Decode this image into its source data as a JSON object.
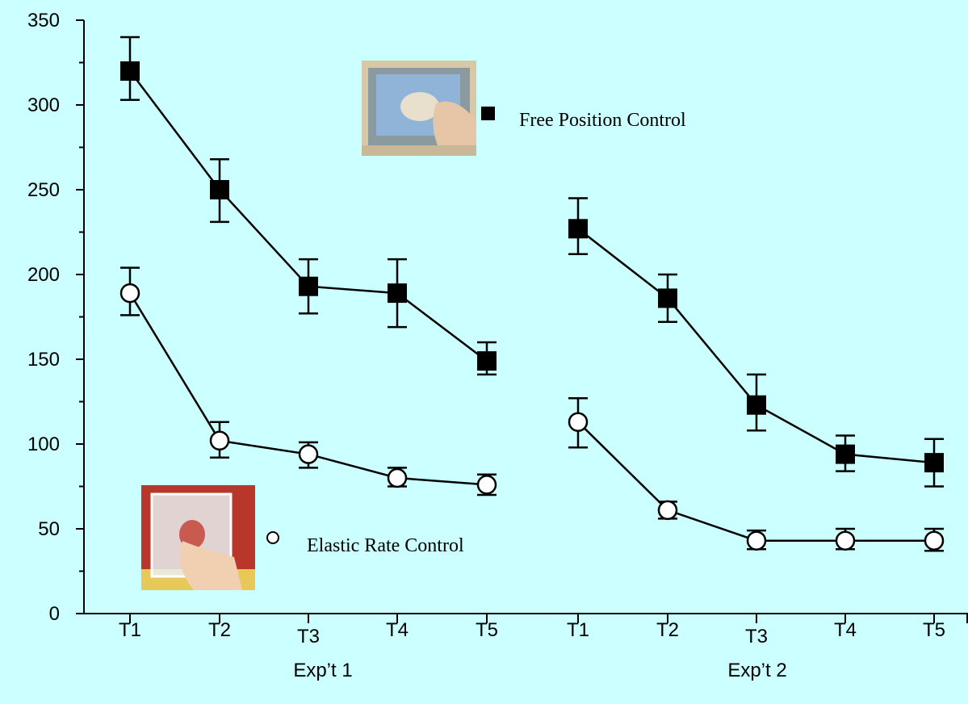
{
  "chart_data": {
    "type": "line",
    "ylim": [
      0,
      350
    ],
    "y_ticks": [
      "0",
      "50",
      "100",
      "150",
      "200",
      "250",
      "300",
      "350"
    ],
    "x_tick_labels": [
      "T1",
      "T2",
      "T3",
      "T4",
      "T5",
      "T1",
      "T2",
      "T3",
      "T4",
      "T5"
    ],
    "group_labels": [
      "Exp’t 1",
      "Exp’t 2"
    ],
    "grid": false,
    "background_color": "#ccffff",
    "legend": [
      {
        "label": "Free Position Control",
        "marker": "filled-square",
        "position": "top-center"
      },
      {
        "label": "Elastic Rate Control",
        "marker": "open-circle",
        "position": "bottom-left"
      }
    ],
    "series": [
      {
        "name": "Free Position Control",
        "marker": "filled-square",
        "color": "#000000",
        "groups": [
          {
            "group": "Exp’t 1",
            "values": [
              320,
              250,
              193,
              189,
              149
            ],
            "err_low": [
              303,
              231,
              177,
              169,
              141
            ],
            "err_high": [
              340,
              268,
              209,
              209,
              160
            ]
          },
          {
            "group": "Exp’t 2",
            "values": [
              227,
              186,
              123,
              94,
              89
            ],
            "err_low": [
              212,
              172,
              108,
              84,
              75
            ],
            "err_high": [
              245,
              200,
              141,
              105,
              103
            ]
          }
        ]
      },
      {
        "name": "Elastic Rate Control",
        "marker": "open-circle",
        "color": "#000000",
        "groups": [
          {
            "group": "Exp’t 1",
            "values": [
              189,
              102,
              94,
              80,
              76
            ],
            "err_low": [
              176,
              92,
              86,
              75,
              70
            ],
            "err_high": [
              204,
              113,
              101,
              86,
              82
            ]
          },
          {
            "group": "Exp’t 2",
            "values": [
              113,
              61,
              43,
              43,
              43
            ],
            "err_low": [
              98,
              56,
              38,
              38,
              37
            ],
            "err_high": [
              127,
              66,
              49,
              50,
              50
            ]
          }
        ]
      }
    ]
  }
}
